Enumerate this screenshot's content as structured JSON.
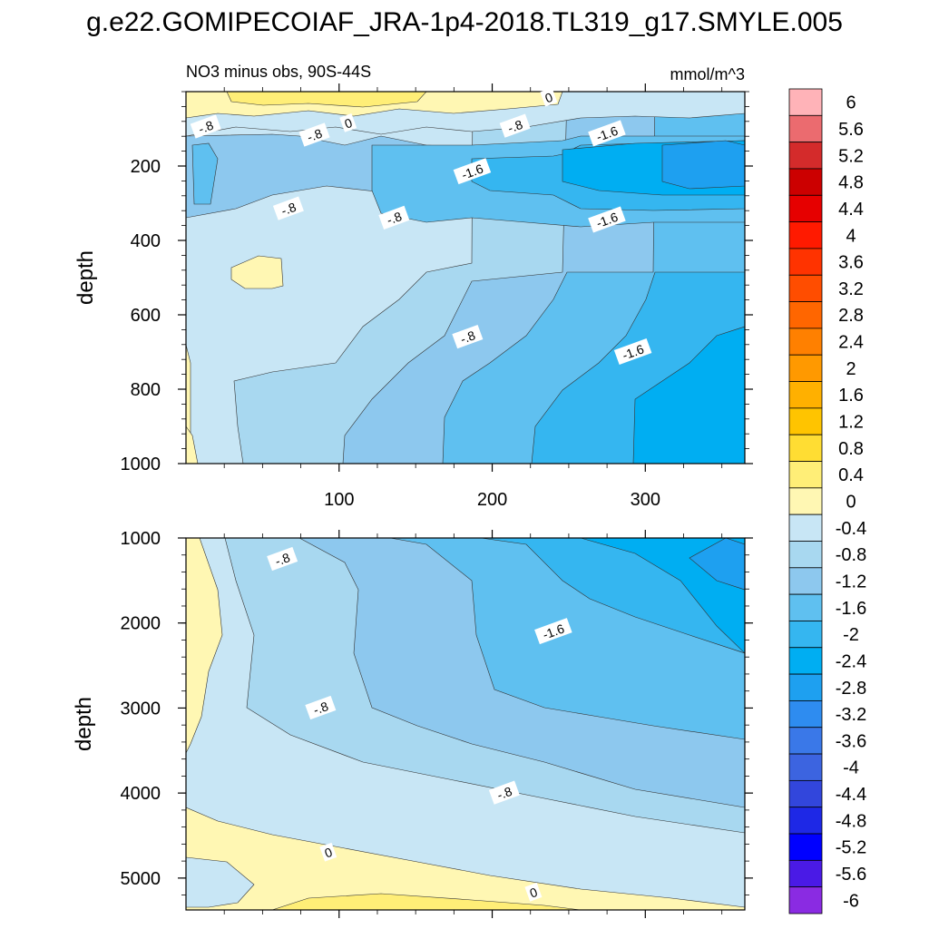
{
  "title": "g.e22.GOMIPECOIAF_JRA-1p4-2018.TL319_g17.SMYLE.005",
  "chart_data": [
    {
      "type": "heatmap",
      "panel": "upper",
      "subtitle": "NO3 minus obs, 90S-44S",
      "units": "mmol/m^3",
      "ylabel": "depth",
      "xlabel": "",
      "x_ticks": [
        100,
        200,
        300
      ],
      "xlim": [
        0,
        365
      ],
      "y_ticks": [
        200,
        400,
        600,
        800,
        1000
      ],
      "ylim": [
        1000,
        0
      ],
      "y_reversed": true,
      "contour_labels": [
        {
          "text": "-.8",
          "x": 13,
          "y": 95
        },
        {
          "text": "0",
          "x": 106,
          "y": 85
        },
        {
          "text": "-.8",
          "x": 84,
          "y": 117
        },
        {
          "text": "0",
          "x": 237,
          "y": 16
        },
        {
          "text": "-.8",
          "x": 215,
          "y": 93
        },
        {
          "text": "-1.6",
          "x": 275,
          "y": 113
        },
        {
          "text": "-1.6",
          "x": 187,
          "y": 215
        },
        {
          "text": "-.8",
          "x": 67,
          "y": 315
        },
        {
          "text": "-.8",
          "x": 136,
          "y": 340
        },
        {
          "text": "-1.6",
          "x": 275,
          "y": 345
        },
        {
          "text": "-.8",
          "x": 184,
          "y": 660
        },
        {
          "text": "-1.6",
          "x": 292,
          "y": 700
        }
      ]
    },
    {
      "type": "heatmap",
      "panel": "lower",
      "ylabel": "depth",
      "xlim": [
        0,
        365
      ],
      "y_ticks": [
        1000,
        2000,
        3000,
        4000,
        5000
      ],
      "ylim": [
        5375,
        1000
      ],
      "y_reversed": true,
      "contour_labels": [
        {
          "text": "-.8",
          "x": 63,
          "y": 1250
        },
        {
          "text": "-1.6",
          "x": 240,
          "y": 2100
        },
        {
          "text": "-.8",
          "x": 88,
          "y": 3000
        },
        {
          "text": "-.8",
          "x": 208,
          "y": 4000
        },
        {
          "text": "0",
          "x": 93,
          "y": 4700
        },
        {
          "text": "0",
          "x": 227,
          "y": 5170
        }
      ]
    }
  ],
  "colorbar": {
    "labels": [
      "6",
      "5.6",
      "5.2",
      "4.8",
      "4.4",
      "4",
      "3.6",
      "3.2",
      "2.8",
      "2.4",
      "2",
      "1.6",
      "1.2",
      "0.8",
      "0.4",
      "0",
      "-0.4",
      "-0.8",
      "-1.2",
      "-1.6",
      "-2",
      "-2.4",
      "-2.8",
      "-3.2",
      "-3.6",
      "-4",
      "-4.4",
      "-4.8",
      "-5.2",
      "-5.6",
      "-6"
    ],
    "colors": [
      "#ffb3b8",
      "#eb6b6f",
      "#d42b2b",
      "#cc0000",
      "#e60000",
      "#ff1a00",
      "#ff3300",
      "#ff4d00",
      "#ff6600",
      "#ff8000",
      "#ff9900",
      "#ffb000",
      "#ffc400",
      "#ffdd33",
      "#ffee77",
      "#fff7b3",
      "#c8e6f5",
      "#a8d8f0",
      "#8dc8ee",
      "#5fc0f0",
      "#35b6f0",
      "#00aef2",
      "#1ea0f0",
      "#2e8cf0",
      "#3a78e8",
      "#3c64e0",
      "#3246dc",
      "#1e28e6",
      "#0000ff",
      "#4a1ae6",
      "#8a2be2"
    ]
  }
}
